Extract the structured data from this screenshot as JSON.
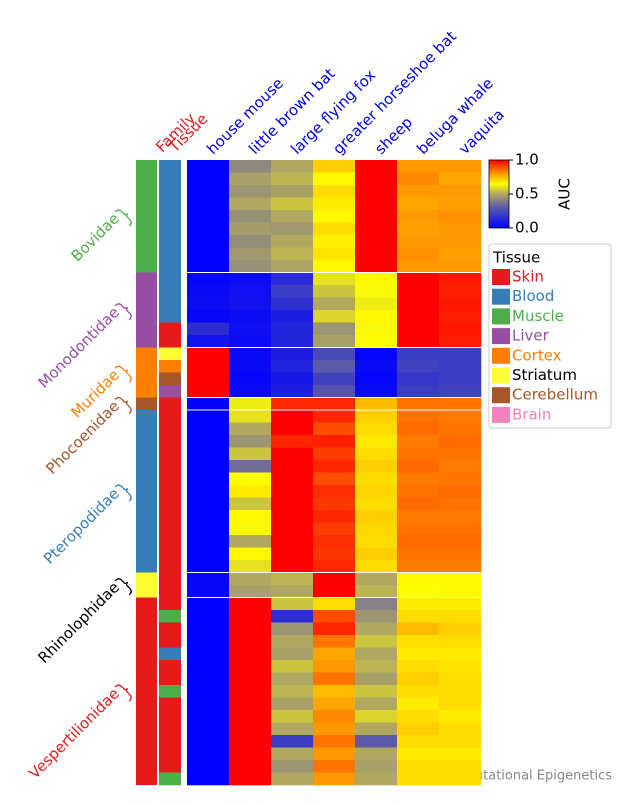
{
  "chart_data": {
    "type": "heatmap",
    "family_header": "Family",
    "tissue_header": "Tissue",
    "columns": [
      "house mouse",
      "little brown bat",
      "large flying fox",
      "greater horseshoe bat",
      "sheep",
      "beluga whale",
      "vaquita"
    ],
    "colorbar_label": "AUC",
    "clim": [
      0,
      1
    ],
    "cticks": [
      {
        "value": 0,
        "label": "0.0"
      },
      0.5,
      {
        "value": 1,
        "label": "1.0"
      }
    ],
    "colormap": [
      [
        0,
        "#0000ff"
      ],
      [
        0.3,
        "#5a5aa8"
      ],
      [
        0.5,
        "#b0a860"
      ],
      [
        0.65,
        "#ffff00"
      ],
      [
        0.8,
        "#ff9900"
      ],
      [
        1,
        "#ff0000"
      ]
    ],
    "legend_title": "Tissue",
    "tissues": [
      {
        "name": "Skin",
        "color": "#e41a1c",
        "label_color": "#e41a1c"
      },
      {
        "name": "Blood",
        "color": "#377eb8",
        "label_color": "#377eb8"
      },
      {
        "name": "Muscle",
        "color": "#4daf4a",
        "label_color": "#4daf4a"
      },
      {
        "name": "Liver",
        "color": "#984ea3",
        "label_color": "#984ea3"
      },
      {
        "name": "Cortex",
        "color": "#ff7f00",
        "label_color": "#ff7f00"
      },
      {
        "name": "Striatum",
        "color": "#ffff33",
        "label_color": "#000000"
      },
      {
        "name": "Cerebellum",
        "color": "#a65628",
        "label_color": "#a65628"
      },
      {
        "name": "Brain",
        "color": "#f781bf",
        "label_color": "#f781bf"
      }
    ],
    "families": [
      {
        "name": "Bovidae",
        "color": "#4daf4a",
        "label_color": "#4daf4a",
        "rows": [
          {
            "tissue": "Blood",
            "values": [
              0,
              0.42,
              0.5,
              0.72,
              1,
              0.8,
              0.8
            ]
          },
          {
            "tissue": "Blood",
            "values": [
              0,
              0.48,
              0.52,
              0.66,
              1,
              0.82,
              0.78
            ]
          },
          {
            "tissue": "Blood",
            "values": [
              0,
              0.45,
              0.48,
              0.7,
              1,
              0.8,
              0.8
            ]
          },
          {
            "tissue": "Blood",
            "values": [
              0,
              0.5,
              0.55,
              0.68,
              1,
              0.78,
              0.79
            ]
          },
          {
            "tissue": "Blood",
            "values": [
              0,
              0.44,
              0.5,
              0.66,
              1,
              0.8,
              0.81
            ]
          },
          {
            "tissue": "Blood",
            "values": [
              0,
              0.47,
              0.46,
              0.7,
              1,
              0.79,
              0.8
            ]
          },
          {
            "tissue": "Blood",
            "values": [
              0,
              0.43,
              0.5,
              0.67,
              1,
              0.8,
              0.8
            ]
          },
          {
            "tissue": "Blood",
            "values": [
              0,
              0.46,
              0.52,
              0.69,
              1,
              0.81,
              0.79
            ]
          },
          {
            "tissue": "Blood",
            "values": [
              0,
              0.44,
              0.49,
              0.66,
              1,
              0.8,
              0.8
            ]
          }
        ]
      },
      {
        "name": "Monodontidae",
        "color": "#984ea3",
        "label_color": "#984ea3",
        "rows": [
          {
            "tissue": "Blood",
            "values": [
              0.02,
              0.04,
              0.14,
              0.6,
              0.66,
              1,
              0.97
            ]
          },
          {
            "tissue": "Blood",
            "values": [
              0.03,
              0.05,
              0.2,
              0.55,
              0.64,
              1,
              0.96
            ]
          },
          {
            "tissue": "Blood",
            "values": [
              0.04,
              0.06,
              0.16,
              0.5,
              0.62,
              1,
              0.97
            ]
          },
          {
            "tissue": "Blood",
            "values": [
              0.02,
              0.04,
              0.1,
              0.58,
              0.66,
              1,
              0.96
            ]
          },
          {
            "tissue": "Skin",
            "values": [
              0.15,
              0.05,
              0.12,
              0.45,
              0.64,
              1,
              0.97
            ]
          },
          {
            "tissue": "Skin",
            "values": [
              0.06,
              0.04,
              0.12,
              0.48,
              0.65,
              1,
              0.96
            ]
          }
        ]
      },
      {
        "name": "Muridae",
        "color": "#ff7f00",
        "label_color": "#ff7f00",
        "rows": [
          {
            "tissue": "Striatum",
            "values": [
              1,
              0.03,
              0.1,
              0.25,
              0.02,
              0.2,
              0.2
            ]
          },
          {
            "tissue": "Cortex",
            "values": [
              1,
              0.03,
              0.12,
              0.3,
              0.03,
              0.22,
              0.2
            ]
          },
          {
            "tissue": "Cerebellum",
            "values": [
              1,
              0.02,
              0.08,
              0.22,
              0.02,
              0.18,
              0.2
            ]
          },
          {
            "tissue": "Liver",
            "values": [
              1,
              0.03,
              0.1,
              0.28,
              0.03,
              0.2,
              0.22
            ]
          }
        ]
      },
      {
        "name": "Phocoenidae",
        "color": "#a65628",
        "label_color": "#a65628",
        "rows": [
          {
            "tissue": "Skin",
            "values": [
              0.01,
              0.62,
              0.95,
              0.95,
              0.75,
              0.85,
              0.85
            ]
          }
        ]
      },
      {
        "name": "Pteropodidae",
        "color": "#377eb8",
        "label_color": "#377eb8",
        "rows": [
          {
            "tissue": "Skin",
            "values": [
              0,
              0.6,
              1,
              0.95,
              0.72,
              0.85,
              0.84
            ]
          },
          {
            "tissue": "Skin",
            "values": [
              0,
              0.5,
              1,
              0.9,
              0.7,
              0.86,
              0.85
            ]
          },
          {
            "tissue": "Skin",
            "values": [
              0,
              0.45,
              0.95,
              0.96,
              0.68,
              0.84,
              0.86
            ]
          },
          {
            "tissue": "Skin",
            "values": [
              0,
              0.55,
              1,
              0.92,
              0.7,
              0.85,
              0.85
            ]
          },
          {
            "tissue": "Skin",
            "values": [
              0,
              0.35,
              1,
              0.95,
              0.72,
              0.86,
              0.84
            ]
          },
          {
            "tissue": "Skin",
            "values": [
              0,
              0.65,
              1,
              0.9,
              0.7,
              0.84,
              0.85
            ]
          },
          {
            "tissue": "Skin",
            "values": [
              0,
              0.68,
              1,
              0.94,
              0.71,
              0.85,
              0.86
            ]
          },
          {
            "tissue": "Skin",
            "values": [
              0,
              0.55,
              1,
              0.93,
              0.7,
              0.86,
              0.85
            ]
          },
          {
            "tissue": "Skin",
            "values": [
              0,
              0.66,
              1,
              0.95,
              0.72,
              0.84,
              0.84
            ]
          },
          {
            "tissue": "Skin",
            "values": [
              0,
              0.64,
              1,
              0.92,
              0.71,
              0.85,
              0.85
            ]
          },
          {
            "tissue": "Skin",
            "values": [
              0,
              0.5,
              1,
              0.94,
              0.7,
              0.86,
              0.86
            ]
          },
          {
            "tissue": "Skin",
            "values": [
              0,
              0.66,
              1,
              0.93,
              0.72,
              0.85,
              0.85
            ]
          },
          {
            "tissue": "Skin",
            "values": [
              0,
              0.6,
              1,
              0.95,
              0.7,
              0.84,
              0.84
            ]
          }
        ]
      },
      {
        "name": "Rhinolophidae",
        "color": "#ffff33",
        "label_color": "#000000",
        "rows": [
          {
            "tissue": "Skin",
            "values": [
              0.02,
              0.5,
              0.52,
              1,
              0.5,
              0.66,
              0.66
            ]
          },
          {
            "tissue": "Skin",
            "values": [
              0.02,
              0.48,
              0.5,
              1,
              0.52,
              0.65,
              0.66
            ]
          }
        ]
      },
      {
        "name": "Vespertilionidae",
        "color": "#e41a1c",
        "label_color": "#e41a1c",
        "rows": [
          {
            "tissue": "Skin",
            "values": [
              0,
              1,
              0.55,
              0.7,
              0.4,
              0.68,
              0.68
            ]
          },
          {
            "tissue": "Muscle",
            "values": [
              0,
              1,
              0.15,
              0.9,
              0.45,
              0.7,
              0.7
            ]
          },
          {
            "tissue": "Skin",
            "values": [
              0,
              1,
              0.45,
              0.95,
              0.5,
              0.75,
              0.72
            ]
          },
          {
            "tissue": "Skin",
            "values": [
              0,
              1,
              0.5,
              0.85,
              0.55,
              0.7,
              0.7
            ]
          },
          {
            "tissue": "Blood",
            "values": [
              0,
              1,
              0.48,
              0.78,
              0.5,
              0.68,
              0.68
            ]
          },
          {
            "tissue": "Skin",
            "values": [
              0,
              1,
              0.55,
              0.8,
              0.52,
              0.7,
              0.69
            ]
          },
          {
            "tissue": "Skin",
            "values": [
              0,
              1,
              0.5,
              0.85,
              0.48,
              0.72,
              0.7
            ]
          },
          {
            "tissue": "Muscle",
            "values": [
              0,
              1,
              0.52,
              0.75,
              0.55,
              0.7,
              0.7
            ]
          },
          {
            "tissue": "Skin",
            "values": [
              0,
              1,
              0.48,
              0.78,
              0.5,
              0.68,
              0.7
            ]
          },
          {
            "tissue": "Skin",
            "values": [
              0,
              1,
              0.55,
              0.82,
              0.58,
              0.7,
              0.68
            ]
          },
          {
            "tissue": "Skin",
            "values": [
              0,
              1,
              0.5,
              0.8,
              0.5,
              0.72,
              0.7
            ]
          },
          {
            "tissue": "Skin",
            "values": [
              0,
              1,
              0.2,
              0.85,
              0.3,
              0.7,
              0.7
            ]
          },
          {
            "tissue": "Skin",
            "values": [
              0,
              1,
              0.5,
              0.8,
              0.5,
              0.68,
              0.68
            ]
          },
          {
            "tissue": "Skin",
            "values": [
              0,
              1,
              0.45,
              0.85,
              0.48,
              0.7,
              0.7
            ]
          },
          {
            "tissue": "Muscle",
            "values": [
              0,
              1,
              0.5,
              0.8,
              0.5,
              0.7,
              0.7
            ]
          }
        ]
      }
    ],
    "watermark": "Computational Epigenetics"
  }
}
